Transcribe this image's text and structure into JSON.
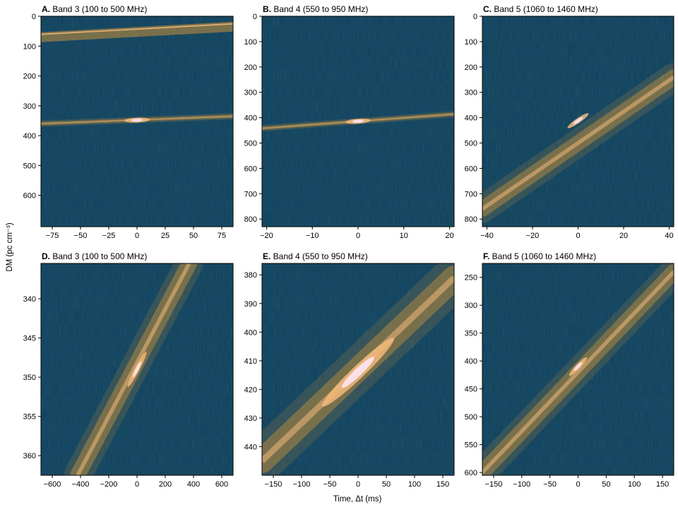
{
  "figure": {
    "ylabel": "DM (pc cm⁻³)",
    "xlabel": "Time, Δt (ms)"
  },
  "colors": {
    "background": "#14435f",
    "mid": "#2f6b63",
    "warm": "#c9923a",
    "hot": "#f2b87a",
    "peak": "#fbe3ef",
    "axis": "#000000"
  },
  "chart_data": [
    {
      "type": "heatmap",
      "panel": "A",
      "title": "Band 3 (100 to 500 MHz)",
      "x": {
        "ticks": [
          -75,
          -50,
          -25,
          0,
          25,
          50,
          75
        ],
        "range": [
          -85,
          85
        ]
      },
      "y": {
        "ticks": [
          0,
          100,
          200,
          300,
          400,
          500,
          600
        ],
        "range": [
          0,
          705
        ],
        "inverted": true
      },
      "sweep": {
        "x_at_left": -85,
        "dm_at_left": 360,
        "x_at_right": 85,
        "dm_at_right": 335
      },
      "peak": {
        "x": 0,
        "dm": 348
      },
      "rfi_band": {
        "x_at_left": -85,
        "dm_at_left": 70,
        "x_at_right": 85,
        "dm_at_right": 35
      }
    },
    {
      "type": "heatmap",
      "panel": "B",
      "title": "Band 4 (550 to 950 MHz)",
      "x": {
        "ticks": [
          -20,
          -10,
          0,
          10,
          20
        ],
        "range": [
          -21,
          21
        ]
      },
      "y": {
        "ticks": [
          0,
          100,
          200,
          300,
          400,
          500,
          600,
          700,
          800
        ],
        "range": [
          0,
          830
        ],
        "inverted": true
      },
      "sweep": {
        "x_at_left": -21,
        "dm_at_left": 442,
        "x_at_right": 21,
        "dm_at_right": 386
      },
      "peak": {
        "x": 0,
        "dm": 414
      }
    },
    {
      "type": "heatmap",
      "panel": "C",
      "title": "Band 5 (1060 to 1460 MHz)",
      "x": {
        "ticks": [
          -40,
          -20,
          0,
          20,
          40
        ],
        "range": [
          -42,
          42
        ]
      },
      "y": {
        "ticks": [
          0,
          100,
          200,
          300,
          400,
          500,
          600,
          700,
          800
        ],
        "range": [
          0,
          830
        ],
        "inverted": true
      },
      "sweep": {
        "x_at_left": -42,
        "dm_at_left": 760,
        "x_at_right": 42,
        "dm_at_right": 240
      },
      "peak": {
        "x": 0,
        "dm": 412
      }
    },
    {
      "type": "heatmap",
      "panel": "D",
      "title": "Band 3 (100 to 500 MHz)",
      "x": {
        "ticks": [
          -600,
          -400,
          -200,
          0,
          200,
          400,
          600
        ],
        "range": [
          -680,
          680
        ]
      },
      "y": {
        "ticks": [
          340,
          345,
          350,
          355,
          360
        ],
        "range": [
          335.5,
          362.5
        ],
        "inverted": true
      },
      "sweep": {
        "x_at_left": -420,
        "dm_at_left": 362.5,
        "x_at_right": 370,
        "dm_at_right": 335.5
      },
      "peak": {
        "x": 0,
        "dm": 349
      }
    },
    {
      "type": "heatmap",
      "panel": "E",
      "title": "Band 4 (550 to 950 MHz)",
      "x": {
        "ticks": [
          -150,
          -100,
          -50,
          0,
          50,
          100,
          150
        ],
        "range": [
          -170,
          170
        ]
      },
      "y": {
        "ticks": [
          380,
          390,
          400,
          410,
          420,
          430,
          440
        ],
        "range": [
          376,
          450
        ],
        "inverted": true
      },
      "sweep": {
        "x_at_left": -170,
        "dm_at_left": 445,
        "x_at_right": 170,
        "dm_at_right": 381
      },
      "peak": {
        "x": 0,
        "dm": 414
      }
    },
    {
      "type": "heatmap",
      "panel": "F",
      "title": "Band 5 (1060 to 1460 MHz)",
      "x": {
        "ticks": [
          -150,
          -100,
          -50,
          0,
          50,
          100,
          150
        ],
        "range": [
          -170,
          170
        ]
      },
      "y": {
        "ticks": [
          250,
          300,
          350,
          400,
          450,
          500,
          550,
          600
        ],
        "range": [
          225,
          605
        ],
        "inverted": true
      },
      "sweep": {
        "x_at_left": -170,
        "dm_at_left": 600,
        "x_at_right": 170,
        "dm_at_right": 240
      },
      "peak": {
        "x": 0,
        "dm": 410
      }
    }
  ]
}
